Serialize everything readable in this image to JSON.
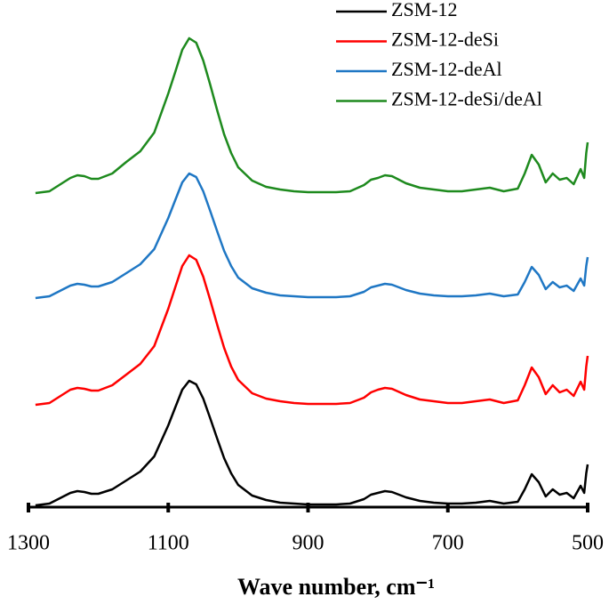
{
  "chart_data": {
    "type": "line",
    "xlabel": "Wave number, cm⁻¹",
    "xlim": [
      1300,
      500
    ],
    "xticks": [
      1300,
      1100,
      900,
      700,
      500
    ],
    "ylim": [
      0,
      540
    ],
    "legend": "top-right",
    "x": [
      1290,
      1270,
      1250,
      1240,
      1230,
      1220,
      1210,
      1200,
      1180,
      1160,
      1140,
      1120,
      1100,
      1090,
      1080,
      1070,
      1060,
      1050,
      1040,
      1030,
      1020,
      1010,
      1000,
      980,
      960,
      940,
      920,
      900,
      880,
      860,
      840,
      820,
      810,
      800,
      790,
      780,
      760,
      740,
      720,
      700,
      680,
      660,
      640,
      620,
      600,
      590,
      580,
      570,
      560,
      550,
      540,
      530,
      520,
      510,
      505,
      502,
      500
    ],
    "series": [
      {
        "name": "ZSM-12",
        "color": "#000000",
        "values": [
          2,
          4,
          12,
          16,
          18,
          17,
          15,
          15,
          20,
          30,
          40,
          57,
          92,
          112,
          132,
          142,
          138,
          122,
          100,
          77,
          55,
          38,
          25,
          13,
          8,
          5,
          4,
          3,
          3,
          3,
          4,
          9,
          14,
          16,
          18,
          17,
          11,
          7,
          5,
          4,
          4,
          5,
          7,
          4,
          6,
          20,
          37,
          28,
          12,
          20,
          14,
          16,
          10,
          24,
          16,
          38,
          48
        ]
      },
      {
        "name": "ZSM-12-deSi",
        "color": "#ff0000",
        "values": [
          115,
          117,
          127,
          132,
          134,
          133,
          131,
          131,
          137,
          149,
          161,
          181,
          223,
          247,
          271,
          283,
          278,
          259,
          233,
          205,
          179,
          158,
          143,
          128,
          122,
          119,
          117,
          116,
          116,
          116,
          117,
          123,
          129,
          132,
          134,
          133,
          126,
          121,
          119,
          117,
          117,
          119,
          121,
          117,
          120,
          137,
          157,
          146,
          127,
          137,
          129,
          132,
          125,
          141,
          132,
          158,
          170
        ]
      },
      {
        "name": "ZSM-12-deAl",
        "color": "#1f77c4",
        "values": [
          235,
          237,
          245,
          249,
          251,
          250,
          248,
          248,
          253,
          263,
          273,
          290,
          325,
          345,
          365,
          375,
          371,
          355,
          333,
          310,
          288,
          271,
          258,
          246,
          241,
          238,
          237,
          236,
          236,
          236,
          237,
          242,
          247,
          249,
          251,
          250,
          244,
          240,
          238,
          237,
          237,
          238,
          240,
          237,
          239,
          253,
          270,
          261,
          245,
          253,
          247,
          249,
          243,
          257,
          249,
          271,
          281
        ]
      },
      {
        "name": "ZSM-12-deSi/deAl",
        "color": "#1e8a1e",
        "values": [
          353,
          355,
          365,
          370,
          373,
          372,
          369,
          369,
          375,
          388,
          400,
          421,
          465,
          489,
          514,
          527,
          522,
          502,
          475,
          446,
          419,
          398,
          382,
          367,
          360,
          357,
          355,
          354,
          354,
          354,
          355,
          362,
          368,
          370,
          373,
          372,
          364,
          359,
          357,
          355,
          355,
          357,
          359,
          355,
          358,
          375,
          396,
          385,
          365,
          375,
          368,
          370,
          363,
          380,
          370,
          398,
          410
        ]
      }
    ]
  }
}
